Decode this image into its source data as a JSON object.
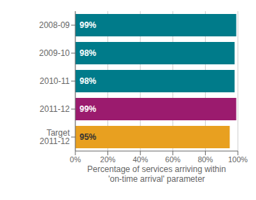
{
  "chart_data": {
    "type": "bar",
    "orientation": "horizontal",
    "categories": [
      "2008-09",
      "2009-10",
      "2010-11",
      "2011-12",
      "Target 2011-12"
    ],
    "values": [
      99,
      98,
      98,
      99,
      95
    ],
    "value_labels": [
      "99%",
      "98%",
      "98%",
      "99%",
      "95%"
    ],
    "data_labels": true,
    "colors": [
      "#007b8a",
      "#007b8a",
      "#007b8a",
      "#9b1b6e",
      "#e8a020"
    ],
    "xlabel": "Percentage of services arriving within\n'on-time arrival' parameter",
    "xlim": [
      0,
      100
    ],
    "xticks": [
      {
        "value": 0,
        "label": "0%"
      },
      {
        "value": 20,
        "label": "20%"
      },
      {
        "value": 40,
        "label": "40%"
      },
      {
        "value": 60,
        "label": "60%"
      },
      {
        "value": 80,
        "label": "80%"
      },
      {
        "value": 100,
        "label": "100%"
      }
    ],
    "grid": true
  }
}
